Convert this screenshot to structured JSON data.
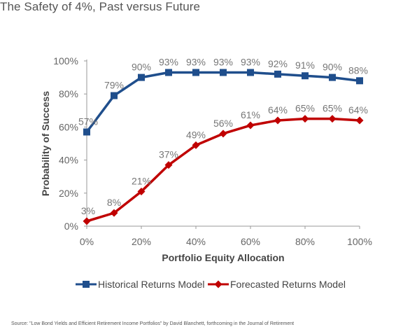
{
  "title": "The Safety of 4%, Past versus Future",
  "source": "Source: \"Low Bond Yields and Efficient Retirement Income Portfolios\" by David Blanchett, forthcoming in the Journal of Retirement",
  "chart_data": {
    "type": "line",
    "xlabel": "Portfolio Equity Allocation",
    "ylabel": "Probability of Success",
    "x": [
      0,
      10,
      20,
      30,
      40,
      50,
      60,
      70,
      80,
      90,
      100
    ],
    "x_ticks": [
      "0%",
      "20%",
      "40%",
      "60%",
      "80%",
      "100%"
    ],
    "y_ticks": [
      "0%",
      "20%",
      "40%",
      "60%",
      "80%",
      "100%"
    ],
    "xlim": [
      0,
      100
    ],
    "ylim": [
      0,
      100
    ],
    "grid": false,
    "legend_position": "bottom",
    "series": [
      {
        "name": "Historical Returns Model",
        "color": "#1f4e8c",
        "marker": "square",
        "values": [
          57,
          79,
          90,
          93,
          93,
          93,
          93,
          92,
          91,
          90,
          88
        ],
        "labels": [
          "57%",
          "79%",
          "90%",
          "93%",
          "93%",
          "93%",
          "93%",
          "92%",
          "91%",
          "90%",
          "88%"
        ]
      },
      {
        "name": "Forecasted Returns Model",
        "color": "#c00000",
        "marker": "diamond",
        "values": [
          3,
          8,
          21,
          37,
          49,
          56,
          61,
          64,
          65,
          65,
          64
        ],
        "labels": [
          "3%",
          "8%",
          "21%",
          "37%",
          "49%",
          "56%",
          "61%",
          "64%",
          "65%",
          "65%",
          "64%"
        ]
      }
    ]
  }
}
